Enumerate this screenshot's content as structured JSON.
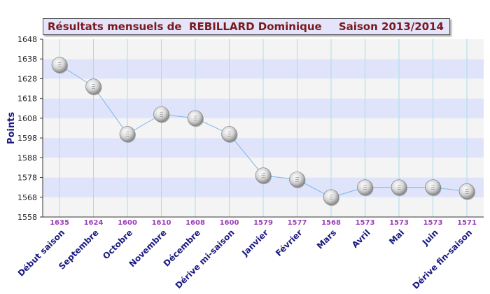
{
  "title": {
    "main": "Résultats mensuels de  REBILLARD Dominique",
    "season": "Saison 2013/2014"
  },
  "colors": {
    "band_blue": "#dfe4fb",
    "band_grey": "#f4f4f4",
    "grid_vertical": "#a9dbea",
    "line": "#7fb8e6",
    "value_label": "#9b3fb8",
    "category_label": "#1a1a80",
    "axis_label": "#1a1a80"
  },
  "chart_data": {
    "type": "line",
    "title": "Résultats mensuels de  REBILLARD Dominique      Saison 2013/2014",
    "xlabel": "",
    "ylabel": "Points",
    "ylim": [
      1558,
      1648
    ],
    "yticks": [
      1558,
      1568,
      1578,
      1588,
      1598,
      1608,
      1618,
      1628,
      1638,
      1648
    ],
    "grid": true,
    "categories": [
      "Début saison",
      "Septembre",
      "Octobre",
      "Novembre",
      "Décembre",
      "Dérive mi-saison",
      "Janvier",
      "Février",
      "Mars",
      "Avril",
      "Mai",
      "Juin",
      "Dérive fin-saison"
    ],
    "values": [
      1635,
      1624,
      1600,
      1610,
      1608,
      1600,
      1579,
      1577,
      1568,
      1573,
      1573,
      1573,
      1571
    ],
    "value_labels": [
      "1635",
      "1624",
      "1600",
      "1610",
      "1608",
      "1600",
      "1579",
      "1577",
      "1568",
      "1573",
      "1573",
      "1573",
      "1571"
    ]
  }
}
